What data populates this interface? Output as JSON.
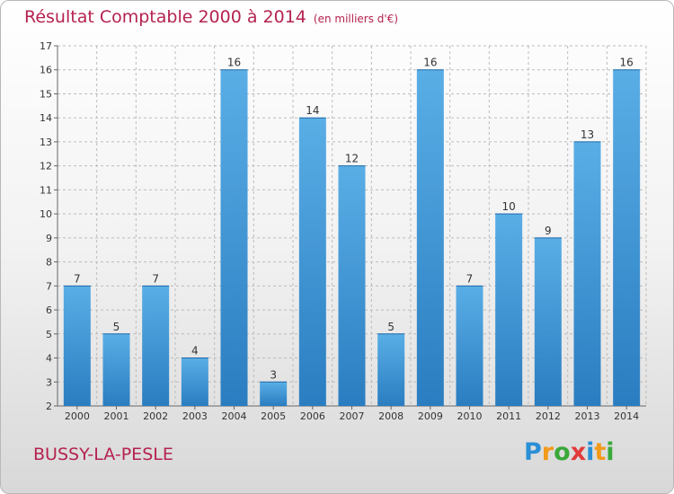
{
  "title": "Résultat Comptable 2000 à 2014",
  "subtitle": "(en milliers d'€)",
  "location": "BUSSY-LA-PESLE",
  "logo": {
    "letters": [
      "P",
      "r",
      "o",
      "x",
      "i",
      "t",
      "i"
    ],
    "colors": [
      "#2a8fd6",
      "#f29a1a",
      "#3aa83a",
      "#e23a3a",
      "#2a8fd6",
      "#f29a1a",
      "#3aa83a"
    ]
  },
  "colors": {
    "bar": "#3d97d8",
    "bar_dark": "#2b7fc4",
    "text_accent": "#b5224f",
    "grid": "#bcbcbc"
  },
  "chart_data": {
    "type": "bar",
    "title": "Résultat Comptable 2000 à 2014",
    "subtitle": "(en milliers d'€)",
    "categories": [
      "2000",
      "2001",
      "2002",
      "2003",
      "2004",
      "2005",
      "2006",
      "2007",
      "2008",
      "2009",
      "2010",
      "2011",
      "2012",
      "2013",
      "2014"
    ],
    "values": [
      7,
      5,
      7,
      4,
      16,
      3,
      14,
      12,
      5,
      16,
      7,
      10,
      9,
      13,
      16
    ],
    "ylim": [
      2,
      17
    ],
    "yticks": [
      2,
      3,
      4,
      5,
      6,
      7,
      8,
      9,
      10,
      11,
      12,
      13,
      14,
      15,
      16,
      17
    ],
    "grid": true,
    "xlabel": "",
    "ylabel": ""
  }
}
